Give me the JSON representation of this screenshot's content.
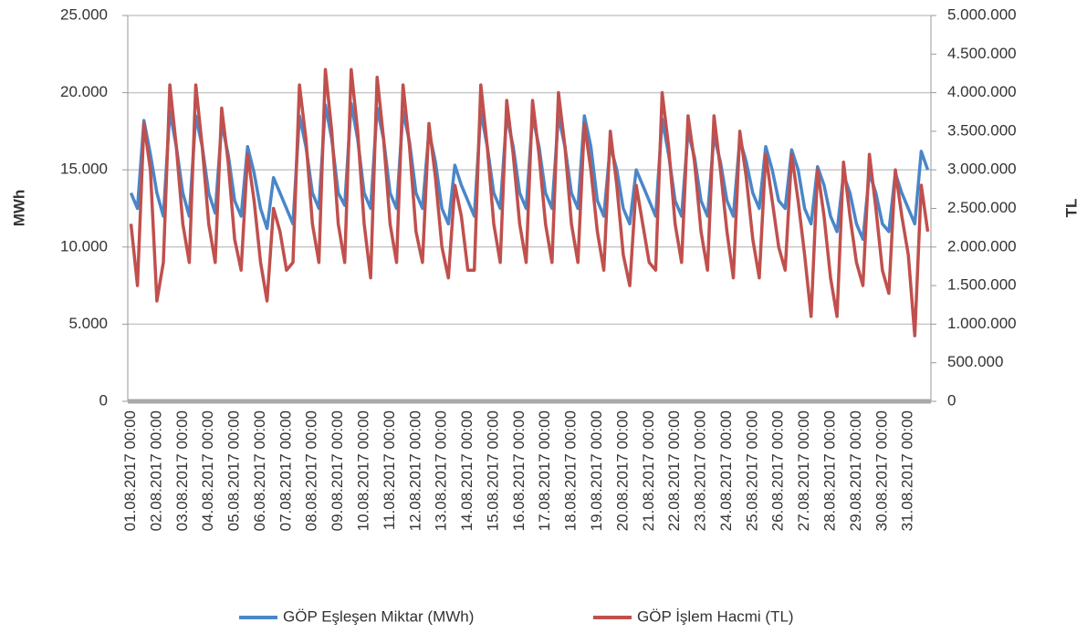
{
  "chart_data": {
    "type": "line",
    "y_label": "MWh",
    "y2_label": "TL",
    "categories": [
      "01.08.2017 00:00",
      null,
      null,
      null,
      "02.08.2017 00:00",
      null,
      null,
      null,
      "03.08.2017 00:00",
      null,
      null,
      null,
      "04.08.2017 00:00",
      null,
      null,
      null,
      "05.08.2017 00:00",
      null,
      null,
      null,
      "06.08.2017 00:00",
      null,
      null,
      null,
      "07.08.2017 00:00",
      null,
      null,
      null,
      "08.08.2017 00:00",
      null,
      null,
      null,
      "09.08.2017 00:00",
      null,
      null,
      null,
      "10.08.2017 00:00",
      null,
      null,
      null,
      "11.08.2017 00:00",
      null,
      null,
      null,
      "12.08.2017 00:00",
      null,
      null,
      null,
      "13.08.2017 00:00",
      null,
      null,
      null,
      "14.08.2017 00:00",
      null,
      null,
      null,
      "15.08.2017 00:00",
      null,
      null,
      null,
      "16.08.2017 00:00",
      null,
      null,
      null,
      "17.08.2017 00:00",
      null,
      null,
      null,
      "18.08.2017 00:00",
      null,
      null,
      null,
      "19.08.2017 00:00",
      null,
      null,
      null,
      "20.08.2017 00:00",
      null,
      null,
      null,
      "21.08.2017 00:00",
      null,
      null,
      null,
      "22.08.2017 00:00",
      null,
      null,
      null,
      "23.08.2017 00:00",
      null,
      null,
      null,
      "24.08.2017 00:00",
      null,
      null,
      null,
      "25.08.2017 00:00",
      null,
      null,
      null,
      "26.08.2017 00:00",
      null,
      null,
      null,
      "27.08.2017 00:00",
      null,
      null,
      null,
      "28.08.2017 00:00",
      null,
      null,
      null,
      "29.08.2017 00:00",
      null,
      null,
      null,
      "30.08.2017 00:00",
      null,
      null,
      null,
      "31.08.2017 00:00",
      null,
      null,
      null
    ],
    "series": [
      {
        "name": "GÖP Eşleşen Miktar (MWh)",
        "color": "#4a86c8",
        "axis": "y",
        "values": [
          13500,
          12500,
          18200,
          16000,
          13500,
          12000,
          18800,
          16500,
          13500,
          12000,
          18500,
          16500,
          13500,
          12200,
          18000,
          16000,
          13000,
          12000,
          16500,
          14800,
          12500,
          11200,
          14500,
          13500,
          12500,
          11500,
          18500,
          16500,
          13500,
          12500,
          19200,
          17000,
          13500,
          12700,
          19300,
          17000,
          13500,
          12500,
          19000,
          17000,
          13500,
          12500,
          18800,
          16800,
          13500,
          12500,
          17500,
          15500,
          12500,
          11500,
          15300,
          14000,
          13000,
          12000,
          18800,
          16500,
          13500,
          12500,
          18500,
          16500,
          13500,
          12500,
          18500,
          16500,
          13500,
          12500,
          18500,
          16500,
          13500,
          12500,
          18500,
          16500,
          13000,
          12000,
          16600,
          15000,
          12500,
          11500,
          15000,
          14000,
          13000,
          12000,
          18300,
          16000,
          13000,
          12000,
          17500,
          15800,
          13000,
          12000,
          17200,
          15500,
          13000,
          12000,
          17000,
          15500,
          13500,
          12500,
          16500,
          15000,
          13000,
          12500,
          16300,
          15000,
          12500,
          11500,
          15200,
          14000,
          12000,
          11000,
          14700,
          13500,
          11500,
          10500,
          14800,
          13500,
          11500,
          11000,
          14800,
          13500,
          12500,
          11500,
          16200,
          15000
        ]
      },
      {
        "name": "GÖP İşlem Hacmi (TL)",
        "color": "#c0504d",
        "axis": "y2",
        "values": [
          2300000,
          1500000,
          3600000,
          3000000,
          1300000,
          1800000,
          4100000,
          3300000,
          2300000,
          1800000,
          4100000,
          3300000,
          2300000,
          1800000,
          3800000,
          3100000,
          2100000,
          1700000,
          3200000,
          2600000,
          1800000,
          1300000,
          2500000,
          2200000,
          1700000,
          1800000,
          4100000,
          3400000,
          2300000,
          1800000,
          4300000,
          3500000,
          2300000,
          1800000,
          4300000,
          3500000,
          2300000,
          1600000,
          4200000,
          3400000,
          2300000,
          1800000,
          4100000,
          3300000,
          2200000,
          1800000,
          3600000,
          2900000,
          2000000,
          1600000,
          2800000,
          2400000,
          1700000,
          1700000,
          4100000,
          3300000,
          2300000,
          1800000,
          3900000,
          3200000,
          2300000,
          1800000,
          3900000,
          3200000,
          2300000,
          1800000,
          4000000,
          3300000,
          2300000,
          1800000,
          3600000,
          3000000,
          2200000,
          1700000,
          3500000,
          2800000,
          1900000,
          1500000,
          2800000,
          2300000,
          1800000,
          1700000,
          4000000,
          3300000,
          2300000,
          1800000,
          3700000,
          3100000,
          2200000,
          1700000,
          3700000,
          3000000,
          2200000,
          1600000,
          3500000,
          2900000,
          2100000,
          1600000,
          3200000,
          2600000,
          2000000,
          1700000,
          3200000,
          2600000,
          1900000,
          1100000,
          3000000,
          2400000,
          1600000,
          1100000,
          3100000,
          2400000,
          1800000,
          1500000,
          3200000,
          2500000,
          1700000,
          1400000,
          3000000,
          2400000,
          1900000,
          850000,
          2800000,
          2200000
        ]
      }
    ],
    "ylim": [
      0,
      25000
    ],
    "yticks": [
      0,
      {
        "value": 5000,
        "label": "5.000"
      },
      {
        "value": 10000,
        "label": "10.000"
      },
      {
        "value": 15000,
        "label": "15.000"
      },
      {
        "value": 20000,
        "label": "20.000"
      },
      {
        "value": 25000,
        "label": "25.000"
      }
    ],
    "y2lim": [
      0,
      5000000
    ],
    "y2ticks": [
      0,
      {
        "value": 500000,
        "label": "500.000"
      },
      {
        "value": 1000000,
        "label": "1.000.000"
      },
      {
        "value": 1500000,
        "label": "1.500.000"
      },
      {
        "value": 2000000,
        "label": "2.000.000"
      },
      {
        "value": 2500000,
        "label": "2.500.000"
      },
      {
        "value": 3000000,
        "label": "3.000.000"
      },
      {
        "value": 3500000,
        "label": "3.500.000"
      },
      {
        "value": 4000000,
        "label": "4.000.000"
      },
      {
        "value": 4500000,
        "label": "4.500.000"
      },
      {
        "value": 5000000,
        "label": "5.000.000"
      }
    ],
    "grid": true,
    "legend": "bottom"
  }
}
